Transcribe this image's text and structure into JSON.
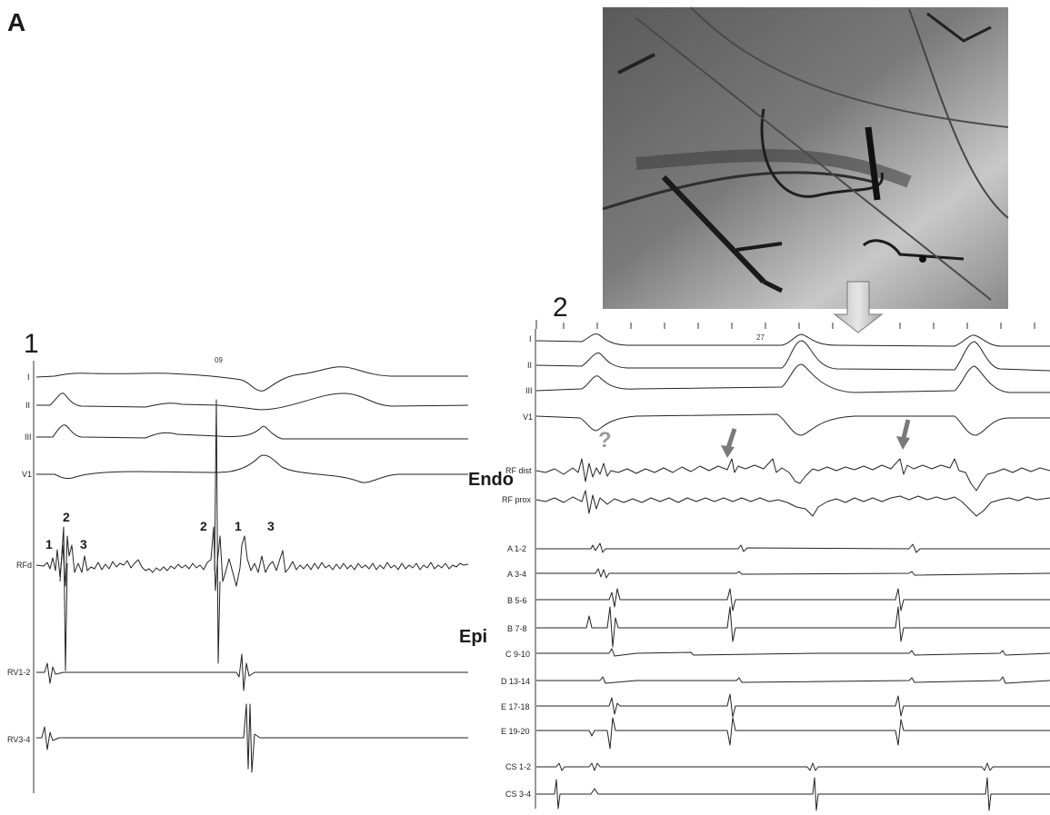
{
  "panel_letter": "A",
  "panel1": {
    "number": "1",
    "marker": "09",
    "leads": [
      "I",
      "II",
      "III",
      "V1",
      "RFd",
      "RV1-2",
      "RV3-4"
    ],
    "deflection_labels": [
      {
        "text": "1"
      },
      {
        "text": "2"
      },
      {
        "text": "3"
      },
      {
        "text": "2"
      },
      {
        "text": "1"
      },
      {
        "text": "3"
      }
    ]
  },
  "panel2": {
    "number": "2",
    "marker": "27",
    "surface_leads": [
      "I",
      "II",
      "III",
      "V1"
    ],
    "endo_label": "Endo",
    "endo_leads": [
      "RF dist",
      "RF prox"
    ],
    "epi_label": "Epi",
    "epi_leads": [
      "A 1-2",
      "A 3-4",
      "B 5-6",
      "B 7-8",
      "C 9-10",
      "D 13-14",
      "E 17-18",
      "E 19-20"
    ],
    "cs_leads": [
      "CS 1-2",
      "CS 3-4"
    ],
    "question_mark": "?"
  },
  "fluoro": {
    "description_icon": "fluoroscopy-image"
  },
  "colors": {
    "trace": "#222222",
    "arrow": "#808080",
    "fluoro_bg": "#6e6e6e"
  }
}
